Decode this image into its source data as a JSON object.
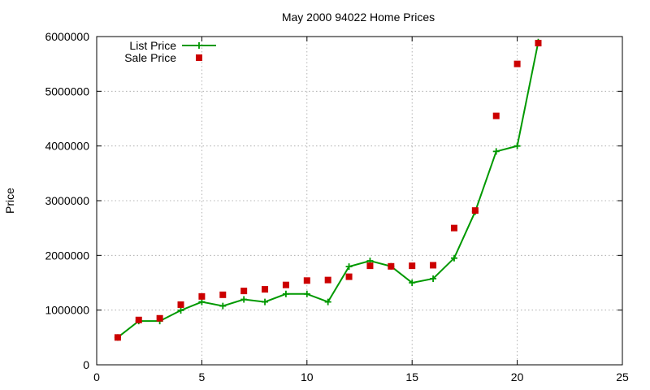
{
  "chart_data": {
    "type": "line",
    "title": "May 2000 94022 Home Prices",
    "xlabel": "",
    "ylabel": "Price",
    "xlim": [
      0,
      25
    ],
    "ylim": [
      0,
      6000000
    ],
    "xticks": [
      0,
      5,
      10,
      15,
      20,
      25
    ],
    "yticks": [
      0,
      1000000,
      2000000,
      3000000,
      4000000,
      5000000,
      6000000
    ],
    "grid": true,
    "legend_position": "top-left",
    "series": [
      {
        "name": "List Price",
        "style": "line-with-plus-markers",
        "color": "#009900",
        "x": [
          1,
          2,
          3,
          4,
          5,
          6,
          7,
          8,
          9,
          10,
          11,
          12,
          13,
          14,
          15,
          16,
          17,
          18,
          19,
          20,
          21
        ],
        "values": [
          500000,
          800000,
          800000,
          995000,
          1150000,
          1075000,
          1195000,
          1150000,
          1295000,
          1295000,
          1150000,
          1795000,
          1900000,
          1800000,
          1500000,
          1575000,
          1950000,
          2800000,
          3900000,
          4000000,
          5900000
        ]
      },
      {
        "name": "Sale Price",
        "style": "square-markers",
        "color": "#cc0000",
        "x": [
          1,
          2,
          3,
          4,
          5,
          6,
          7,
          8,
          9,
          10,
          11,
          12,
          13,
          14,
          15,
          16,
          17,
          18,
          19,
          20,
          21
        ],
        "values": [
          500000,
          820000,
          850000,
          1100000,
          1250000,
          1280000,
          1350000,
          1380000,
          1460000,
          1540000,
          1550000,
          1610000,
          1810000,
          1800000,
          1810000,
          1820000,
          2500000,
          2820000,
          4550000,
          5500000,
          5880000
        ]
      }
    ]
  }
}
